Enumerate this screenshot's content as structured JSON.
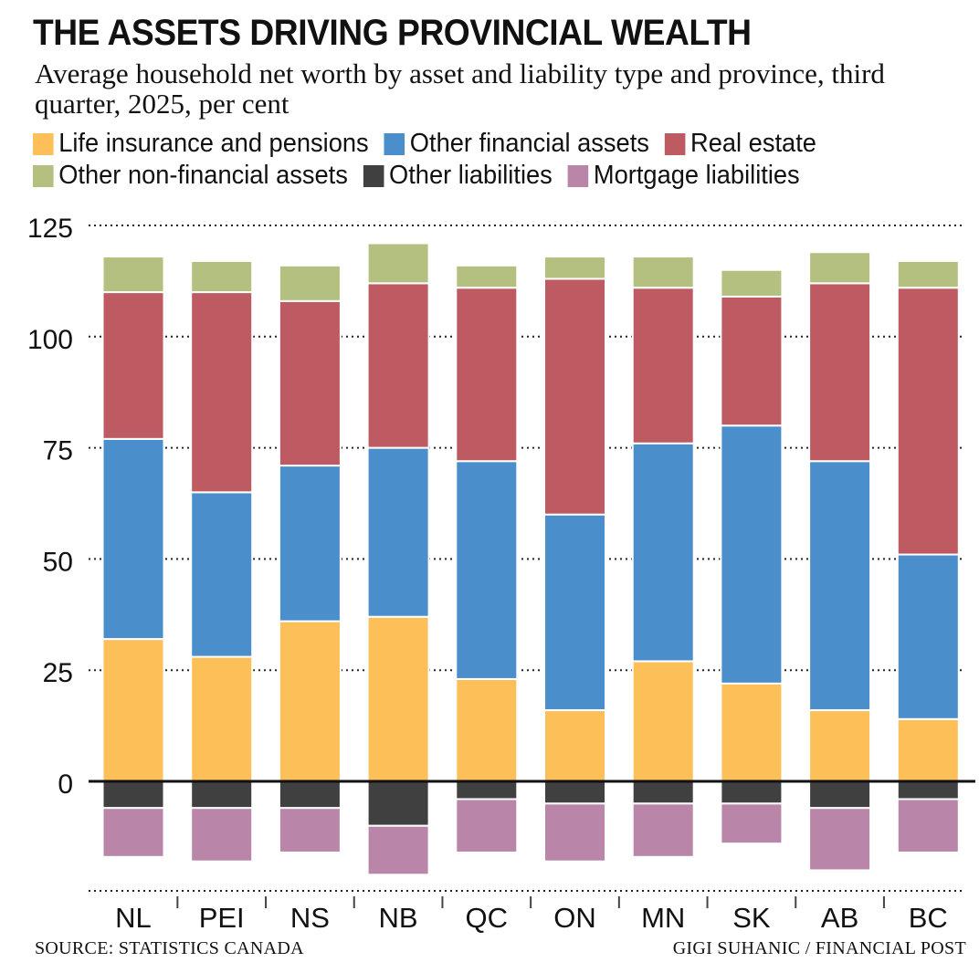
{
  "header": {
    "title": "THE ASSETS DRIVING PROVINCIAL WEALTH",
    "subtitle": "Average household net worth by asset and liability type and province, third quarter, 2025, per cent"
  },
  "footer": {
    "source": "SOURCE: STATISTICS CANADA",
    "credit": "GIGI SUHANIC / FINANCIAL POST"
  },
  "chart_data": {
    "type": "bar",
    "stacked": true,
    "title": "THE ASSETS DRIVING PROVINCIAL WEALTH",
    "subtitle": "Average household net worth by asset and liability type and province, third quarter, 2025, per cent",
    "xlabel": "",
    "ylabel": "",
    "ylim": [
      -25,
      125
    ],
    "yticks": [
      0,
      25,
      50,
      75,
      100,
      125
    ],
    "grid": true,
    "legend_position": "top",
    "categories": [
      "NL",
      "PEI",
      "NS",
      "NB",
      "QC",
      "ON",
      "MN",
      "SK",
      "AB",
      "BC"
    ],
    "series": [
      {
        "name": "Life insurance and pensions",
        "color": "#fdbf57",
        "values": [
          32,
          28,
          36,
          37,
          23,
          16,
          27,
          22,
          16,
          14
        ]
      },
      {
        "name": "Other financial assets",
        "color": "#4a8fcb",
        "values": [
          45,
          37,
          35,
          38,
          49,
          44,
          49,
          58,
          56,
          37
        ]
      },
      {
        "name": "Real estate",
        "color": "#bd5a62",
        "values": [
          33,
          45,
          37,
          37,
          39,
          53,
          35,
          29,
          40,
          60
        ]
      },
      {
        "name": "Other non-financial assets",
        "color": "#b3c07f",
        "values": [
          8,
          7,
          8,
          9,
          5,
          5,
          7,
          6,
          7,
          6
        ]
      },
      {
        "name": "Other liabilities",
        "color": "#404040",
        "values": [
          -6,
          -6,
          -6,
          -10,
          -4,
          -5,
          -5,
          -5,
          -6,
          -4
        ]
      },
      {
        "name": "Mortgage liabilities",
        "color": "#b985a8",
        "values": [
          -11,
          -12,
          -10,
          -11,
          -12,
          -13,
          -12,
          -9,
          -14,
          -12
        ]
      }
    ]
  }
}
